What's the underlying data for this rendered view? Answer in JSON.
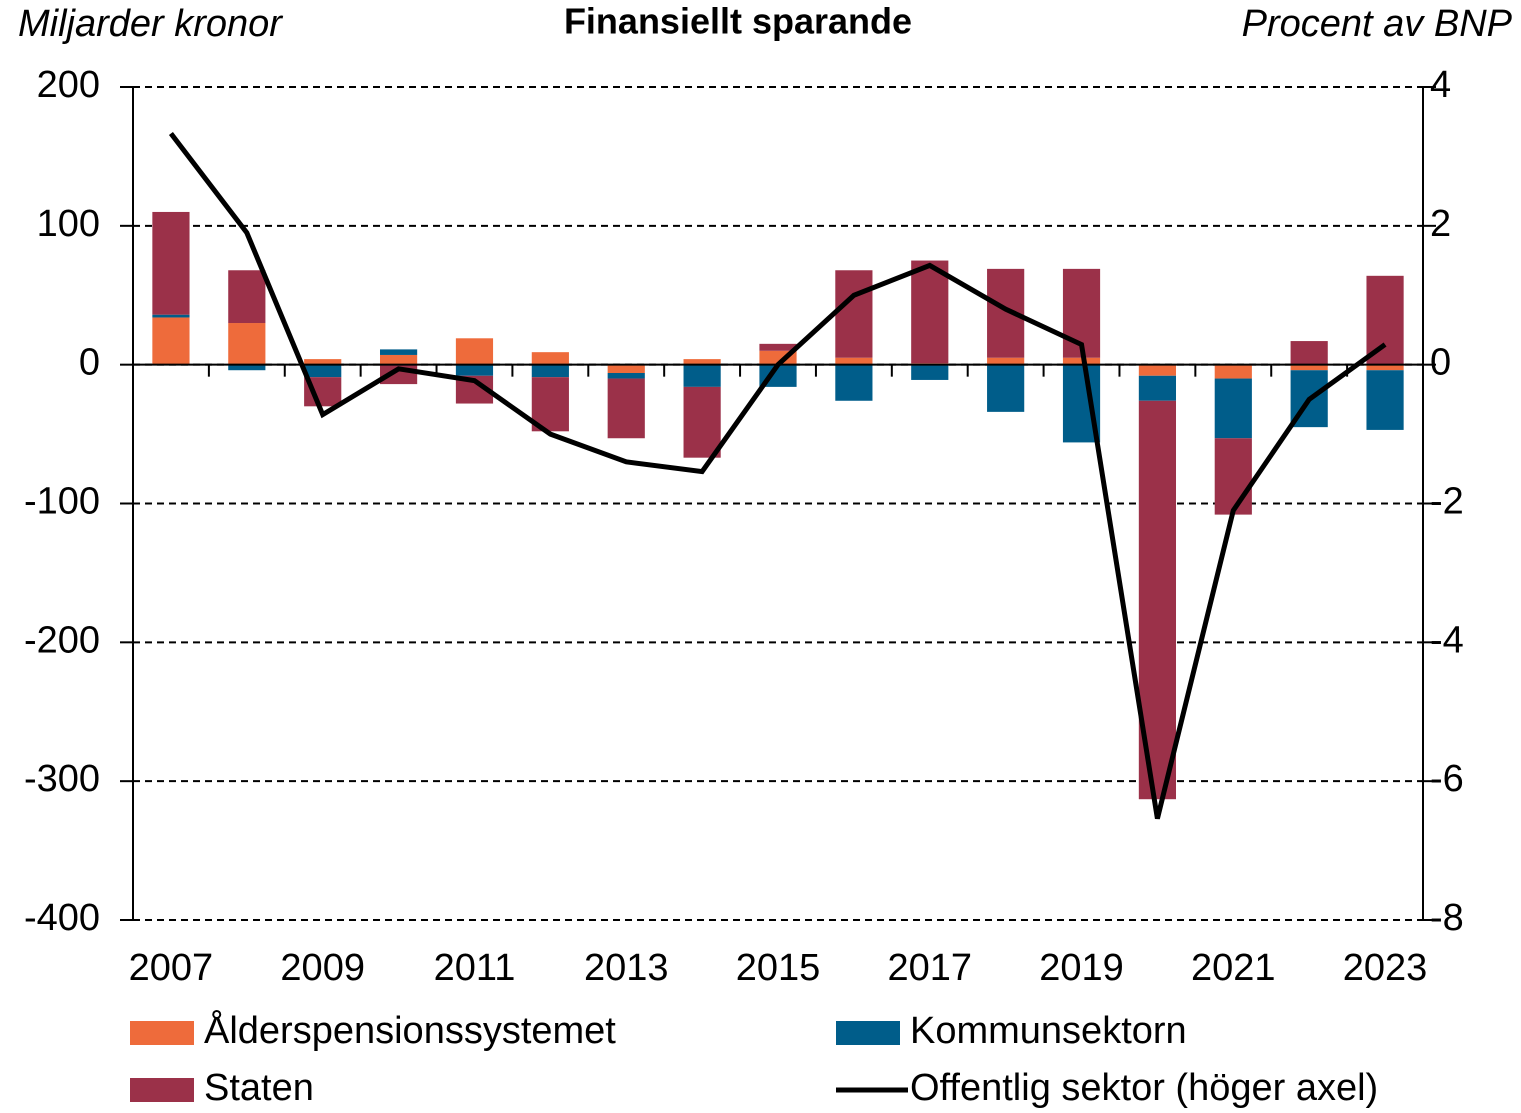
{
  "chart_data": {
    "type": "bar",
    "stacked": true,
    "title": "Finansiellt sparande",
    "y_label": "Miljarder kronor",
    "y2_label": "Procent av BNP",
    "categories": [
      "2007",
      null,
      "2009",
      null,
      "2011",
      null,
      "2013",
      null,
      "2015",
      null,
      "2017",
      null,
      "2019",
      null,
      "2021",
      null,
      "2023"
    ],
    "series": [
      {
        "name": "Ålderspensionssystemet",
        "color": "#ee6b3b",
        "values": [
          34,
          30,
          4,
          7,
          19,
          9,
          -6,
          4,
          10,
          5,
          1,
          5,
          5,
          -8,
          -10,
          -4,
          -4
        ]
      },
      {
        "name": "Kommunsektorn",
        "color": "#005d8a",
        "values": [
          2,
          -4,
          -9,
          4,
          -8,
          -9,
          -4,
          -16,
          -16,
          -26,
          -11,
          -34,
          -56,
          -18,
          -43,
          -41,
          -43
        ]
      },
      {
        "name": "Staten",
        "color": "#9b3149",
        "values": [
          74,
          38,
          -21,
          -14,
          -20,
          -39,
          -43,
          -51,
          5,
          63,
          74,
          64,
          64,
          -287,
          -55,
          17,
          64
        ]
      },
      {
        "name": "Offentlig sektor (höger axel)",
        "color": "#000000",
        "type": "line",
        "axis": "y2",
        "values": [
          3.33,
          1.9,
          -0.72,
          -0.06,
          -0.23,
          -1.0,
          -1.4,
          -1.54,
          0.0,
          1.0,
          1.43,
          0.8,
          0.29,
          -6.54,
          -2.1,
          -0.5,
          0.29
        ]
      }
    ],
    "ylim": [
      -400,
      200
    ],
    "yticks": [
      -400,
      -300,
      -200,
      -100,
      0,
      100,
      200
    ],
    "y2lim": [
      -8,
      4
    ],
    "y2ticks": [
      -8,
      -6,
      -4,
      -2,
      0,
      2,
      4
    ],
    "grid": true
  }
}
